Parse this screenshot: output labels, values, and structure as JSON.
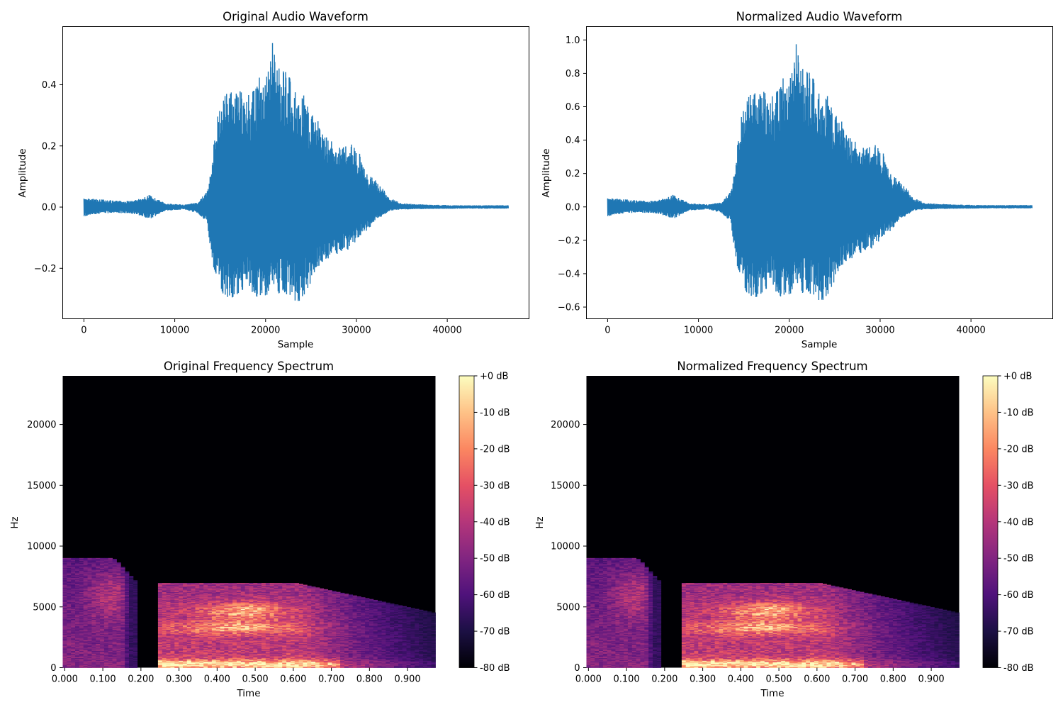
{
  "figure": {
    "background": "#ffffff",
    "line_color": "#1f77b4"
  },
  "chart_data": [
    {
      "id": "orig-wave",
      "type": "line",
      "title": "Original Audio Waveform",
      "xlabel": "Sample",
      "ylabel": "Amplitude",
      "xlim": [
        -2333,
        49000
      ],
      "ylim": [
        -0.365,
        0.59
      ],
      "xticks": [
        0,
        10000,
        20000,
        30000,
        40000
      ],
      "xtick_labels": [
        "0",
        "10000",
        "20000",
        "30000",
        "40000"
      ],
      "yticks": [
        -0.2,
        0.0,
        0.2,
        0.4
      ],
      "ytick_labels": [
        "−0.2",
        "0.0",
        "0.2",
        "0.4"
      ],
      "grid": false,
      "series": [
        {
          "n_samples": 46700,
          "envelope_x": [
            0,
            2000,
            5000,
            6500,
            7200,
            9000,
            11000,
            12500,
            13500,
            14000,
            14500,
            15000,
            15600,
            16400,
            17200,
            18000,
            18700,
            19500,
            20300,
            20800,
            21100,
            22000,
            23000,
            23600,
            24000,
            24800,
            25800,
            26800,
            27800,
            28600,
            29500,
            30300,
            31000,
            32000,
            32800,
            33300,
            33700,
            35000,
            38000,
            42000,
            46700
          ],
          "upper": [
            0.03,
            0.025,
            0.02,
            0.03,
            0.04,
            0.012,
            0.008,
            0.015,
            0.05,
            0.12,
            0.26,
            0.35,
            0.37,
            0.38,
            0.39,
            0.36,
            0.4,
            0.44,
            0.47,
            0.55,
            0.46,
            0.45,
            0.42,
            0.36,
            0.39,
            0.32,
            0.28,
            0.25,
            0.19,
            0.2,
            0.21,
            0.18,
            0.12,
            0.09,
            0.07,
            0.04,
            0.03,
            0.012,
            0.008,
            0.006,
            0.006
          ],
          "lower": [
            -0.03,
            -0.02,
            -0.02,
            -0.03,
            -0.04,
            -0.012,
            -0.008,
            -0.02,
            -0.05,
            -0.15,
            -0.25,
            -0.28,
            -0.31,
            -0.3,
            -0.28,
            -0.25,
            -0.3,
            -0.29,
            -0.31,
            -0.26,
            -0.29,
            -0.28,
            -0.3,
            -0.32,
            -0.3,
            -0.26,
            -0.2,
            -0.18,
            -0.16,
            -0.14,
            -0.15,
            -0.1,
            -0.08,
            -0.05,
            -0.03,
            -0.02,
            -0.012,
            -0.008,
            -0.006,
            -0.005,
            -0.005
          ]
        }
      ]
    },
    {
      "id": "norm-wave",
      "type": "line",
      "title": "Normalized Audio Waveform",
      "xlabel": "Sample",
      "ylabel": "Amplitude",
      "xlim": [
        -2333,
        49000
      ],
      "ylim": [
        -0.67,
        1.08
      ],
      "xticks": [
        0,
        10000,
        20000,
        30000,
        40000
      ],
      "xtick_labels": [
        "0",
        "10000",
        "20000",
        "30000",
        "40000"
      ],
      "yticks": [
        -0.6,
        -0.4,
        -0.2,
        0.0,
        0.2,
        0.4,
        0.6,
        0.8,
        1.0
      ],
      "ytick_labels": [
        "−0.6",
        "−0.4",
        "−0.2",
        "0.0",
        "0.2",
        "0.4",
        "0.6",
        "0.8",
        "1.0"
      ],
      "grid": false,
      "series": [
        {
          "n_samples": 46700,
          "envelope_x": [
            0,
            2000,
            5000,
            6500,
            7200,
            9000,
            11000,
            12500,
            13500,
            14000,
            14500,
            15000,
            15600,
            16400,
            17200,
            18000,
            18700,
            19500,
            20300,
            20800,
            21100,
            22000,
            23000,
            23600,
            24000,
            24800,
            25800,
            26800,
            27800,
            28600,
            29500,
            30300,
            31000,
            32000,
            32800,
            33300,
            33700,
            35000,
            38000,
            42000,
            46700
          ],
          "upper": [
            0.055,
            0.045,
            0.036,
            0.055,
            0.073,
            0.022,
            0.015,
            0.027,
            0.091,
            0.22,
            0.47,
            0.64,
            0.67,
            0.69,
            0.71,
            0.65,
            0.73,
            0.8,
            0.85,
            1.0,
            0.84,
            0.82,
            0.76,
            0.65,
            0.71,
            0.58,
            0.51,
            0.45,
            0.35,
            0.36,
            0.38,
            0.33,
            0.22,
            0.16,
            0.13,
            0.073,
            0.055,
            0.022,
            0.015,
            0.011,
            0.011
          ],
          "lower": [
            -0.055,
            -0.036,
            -0.036,
            -0.055,
            -0.073,
            -0.022,
            -0.015,
            -0.036,
            -0.091,
            -0.27,
            -0.45,
            -0.51,
            -0.56,
            -0.55,
            -0.51,
            -0.45,
            -0.55,
            -0.53,
            -0.56,
            -0.47,
            -0.53,
            -0.51,
            -0.55,
            -0.58,
            -0.55,
            -0.47,
            -0.36,
            -0.33,
            -0.29,
            -0.25,
            -0.27,
            -0.18,
            -0.15,
            -0.09,
            -0.055,
            -0.036,
            -0.022,
            -0.015,
            -0.011,
            -0.009,
            -0.009
          ]
        }
      ]
    },
    {
      "id": "orig-spec",
      "type": "heatmap",
      "title": "Original Frequency Spectrum",
      "xlabel": "Time",
      "ylabel": "Hz",
      "xlim": [
        -0.0053,
        0.9733
      ],
      "ylim": [
        0,
        24000
      ],
      "xticks": [
        0.0,
        0.1,
        0.2,
        0.3,
        0.4,
        0.5,
        0.6,
        0.7,
        0.8,
        0.9
      ],
      "xtick_labels": [
        "0.000",
        "0.100",
        "0.200",
        "0.300",
        "0.400",
        "0.500",
        "0.600",
        "0.700",
        "0.800",
        "0.900"
      ],
      "yticks": [
        0,
        5000,
        10000,
        15000,
        20000
      ],
      "ytick_labels": [
        "0",
        "5000",
        "10000",
        "15000",
        "20000"
      ],
      "colormap": "magma",
      "colorbar": {
        "range": [
          -80,
          0
        ],
        "ticks": [
          0,
          -10,
          -20,
          -30,
          -40,
          -50,
          -60,
          -70,
          -80
        ],
        "labels": [
          "+0 dB",
          "-10 dB",
          "-20 dB",
          "-30 dB",
          "-40 dB",
          "-50 dB",
          "-60 dB",
          "-70 dB",
          "-80 dB"
        ]
      },
      "grid": false
    },
    {
      "id": "norm-spec",
      "type": "heatmap",
      "title": "Normalized Frequency Spectrum",
      "xlabel": "Time",
      "ylabel": "Hz",
      "xlim": [
        -0.0053,
        0.9733
      ],
      "ylim": [
        0,
        24000
      ],
      "xticks": [
        0.0,
        0.1,
        0.2,
        0.3,
        0.4,
        0.5,
        0.6,
        0.7,
        0.8,
        0.9
      ],
      "xtick_labels": [
        "0.000",
        "0.100",
        "0.200",
        "0.300",
        "0.400",
        "0.500",
        "0.600",
        "0.700",
        "0.800",
        "0.900"
      ],
      "yticks": [
        0,
        5000,
        10000,
        15000,
        20000
      ],
      "ytick_labels": [
        "0",
        "5000",
        "10000",
        "15000",
        "20000"
      ],
      "colormap": "magma",
      "colorbar": {
        "range": [
          -80,
          0
        ],
        "ticks": [
          0,
          -10,
          -20,
          -30,
          -40,
          -50,
          -60,
          -70,
          -80
        ],
        "labels": [
          "+0 dB",
          "-10 dB",
          "-20 dB",
          "-30 dB",
          "-40 dB",
          "-50 dB",
          "-60 dB",
          "-70 dB",
          "-80 dB"
        ]
      },
      "grid": false
    }
  ]
}
